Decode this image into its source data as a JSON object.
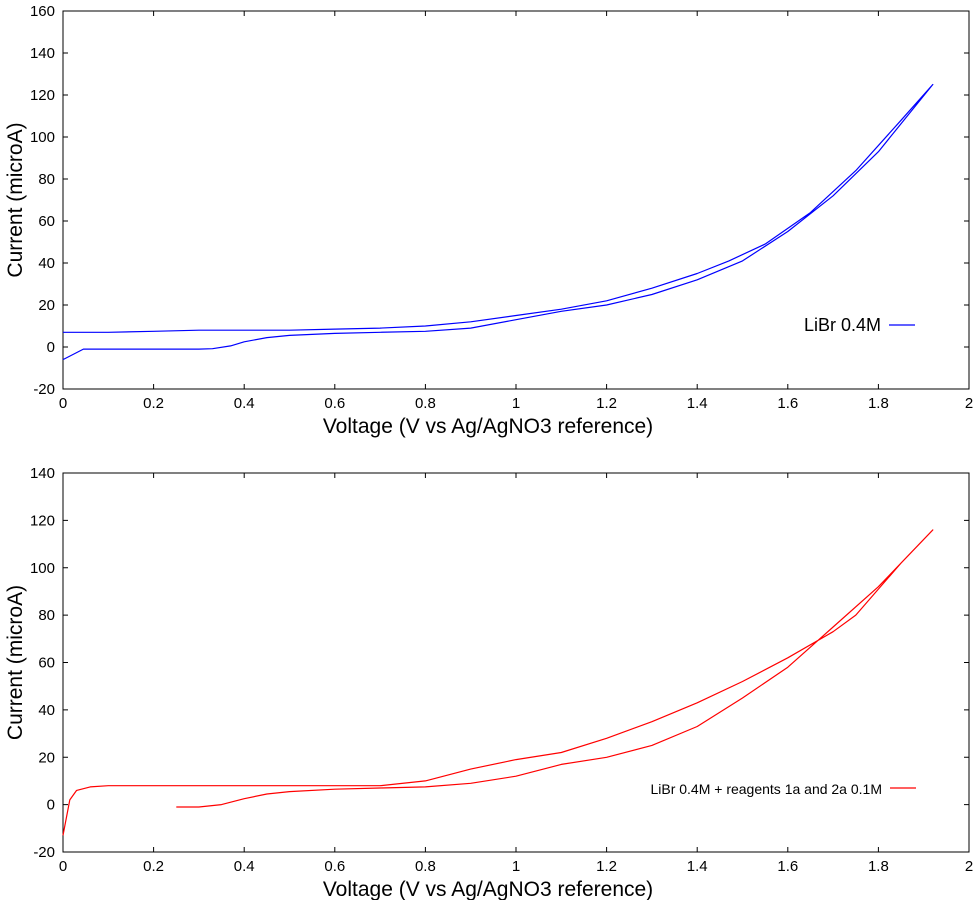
{
  "chart_data": [
    {
      "type": "line",
      "xlabel": "Voltage (V vs Ag/AgNO3 reference)",
      "ylabel": "Current (microA)",
      "xlim": [
        0,
        2
      ],
      "ylim": [
        -20,
        160
      ],
      "xticks": [
        "0",
        "0.2",
        "0.4",
        "0.6",
        "0.8",
        "1",
        "1.2",
        "1.4",
        "1.6",
        "1.8",
        "2"
      ],
      "yticks": [
        "-20",
        "0",
        "20",
        "40",
        "60",
        "80",
        "100",
        "120",
        "140",
        "160"
      ],
      "grid": false,
      "legend_position": "right-center",
      "series": [
        {
          "name": "LiBr 0.4M",
          "color": "#0000ff",
          "x": [
            0,
            0.045,
            0.1,
            0.2,
            0.3,
            0.33,
            0.37,
            0.4,
            0.45,
            0.5,
            0.6,
            0.7,
            0.8,
            0.9,
            1.0,
            1.1,
            1.2,
            1.3,
            1.4,
            1.5,
            1.6,
            1.7,
            1.8,
            1.92,
            1.85,
            1.75,
            1.65,
            1.55,
            1.47,
            1.4,
            1.3,
            1.2,
            1.1,
            1.0,
            0.9,
            0.8,
            0.7,
            0.6,
            0.5,
            0.4,
            0.3,
            0.2,
            0.1,
            0
          ],
          "y": [
            -6,
            -1,
            -1,
            -1,
            -1,
            -0.8,
            0.5,
            2.5,
            4.5,
            5.5,
            6.5,
            7,
            7.5,
            9,
            13,
            17,
            20,
            25,
            32,
            41,
            55,
            72,
            93,
            125,
            108,
            84,
            64,
            49,
            41,
            35,
            28,
            22,
            18,
            15,
            12,
            10,
            9,
            8.5,
            8,
            8,
            8,
            7.5,
            7,
            7
          ]
        }
      ]
    },
    {
      "type": "line",
      "xlabel": "Voltage (V vs Ag/AgNO3 reference)",
      "ylabel": "Current (microA)",
      "xlim": [
        0,
        2
      ],
      "ylim": [
        -20,
        140
      ],
      "xticks": [
        "0",
        "0.2",
        "0.4",
        "0.6",
        "0.8",
        "1",
        "1.2",
        "1.4",
        "1.6",
        "1.8",
        "2"
      ],
      "yticks": [
        "-20",
        "0",
        "20",
        "40",
        "60",
        "80",
        "100",
        "120",
        "140"
      ],
      "grid": false,
      "legend_position": "right-center",
      "series": [
        {
          "name": "LiBr 0.4M + reagents 1a and 2a 0.1M",
          "color": "#ff0000",
          "x": [
            0.25,
            0.3,
            0.35,
            0.4,
            0.45,
            0.5,
            0.6,
            0.7,
            0.8,
            0.9,
            1.0,
            1.1,
            1.2,
            1.3,
            1.4,
            1.5,
            1.6,
            1.7,
            1.8,
            1.92,
            1.85,
            1.75,
            1.7,
            1.6,
            1.5,
            1.4,
            1.3,
            1.2,
            1.1,
            1.0,
            0.9,
            0.8,
            0.7,
            0.6,
            0.5,
            0.4,
            0.3,
            0.2,
            0.1,
            0.06,
            0.03,
            0.015,
            0
          ],
          "y": [
            -1,
            -1,
            0,
            2.5,
            4.5,
            5.5,
            6.5,
            7,
            7.5,
            9,
            12,
            17,
            20,
            25,
            33,
            45,
            58,
            75,
            92,
            116,
            102,
            80,
            73,
            62,
            52,
            43,
            35,
            28,
            22,
            19,
            15,
            10,
            8,
            8,
            8,
            8,
            8,
            8,
            8,
            7.5,
            6,
            2,
            -13
          ]
        }
      ]
    }
  ]
}
